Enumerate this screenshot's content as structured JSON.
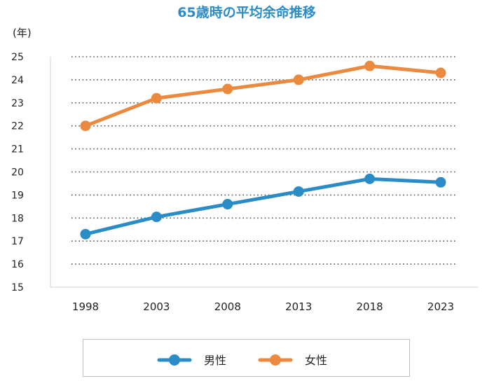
{
  "chart_data": {
    "type": "line",
    "title": "65歳時の平均余命推移",
    "ylabel": "(年)",
    "xlabel": "",
    "categories": [
      "1998",
      "2003",
      "2008",
      "2013",
      "2018",
      "2023"
    ],
    "yticks": [
      "15",
      "16",
      "17",
      "18",
      "19",
      "20",
      "21",
      "22",
      "23",
      "24",
      "25"
    ],
    "ylim": [
      15,
      25
    ],
    "grid": true,
    "legend_position": "bottom",
    "series": [
      {
        "name": "男性",
        "color": "#2a8cc7",
        "values": [
          17.3,
          18.05,
          18.6,
          19.15,
          19.7,
          19.55
        ]
      },
      {
        "name": "女性",
        "color": "#eb8a3f",
        "values": [
          22.0,
          23.2,
          23.6,
          24.0,
          24.6,
          24.3
        ]
      }
    ],
    "title_color": "#2a8cc7"
  }
}
